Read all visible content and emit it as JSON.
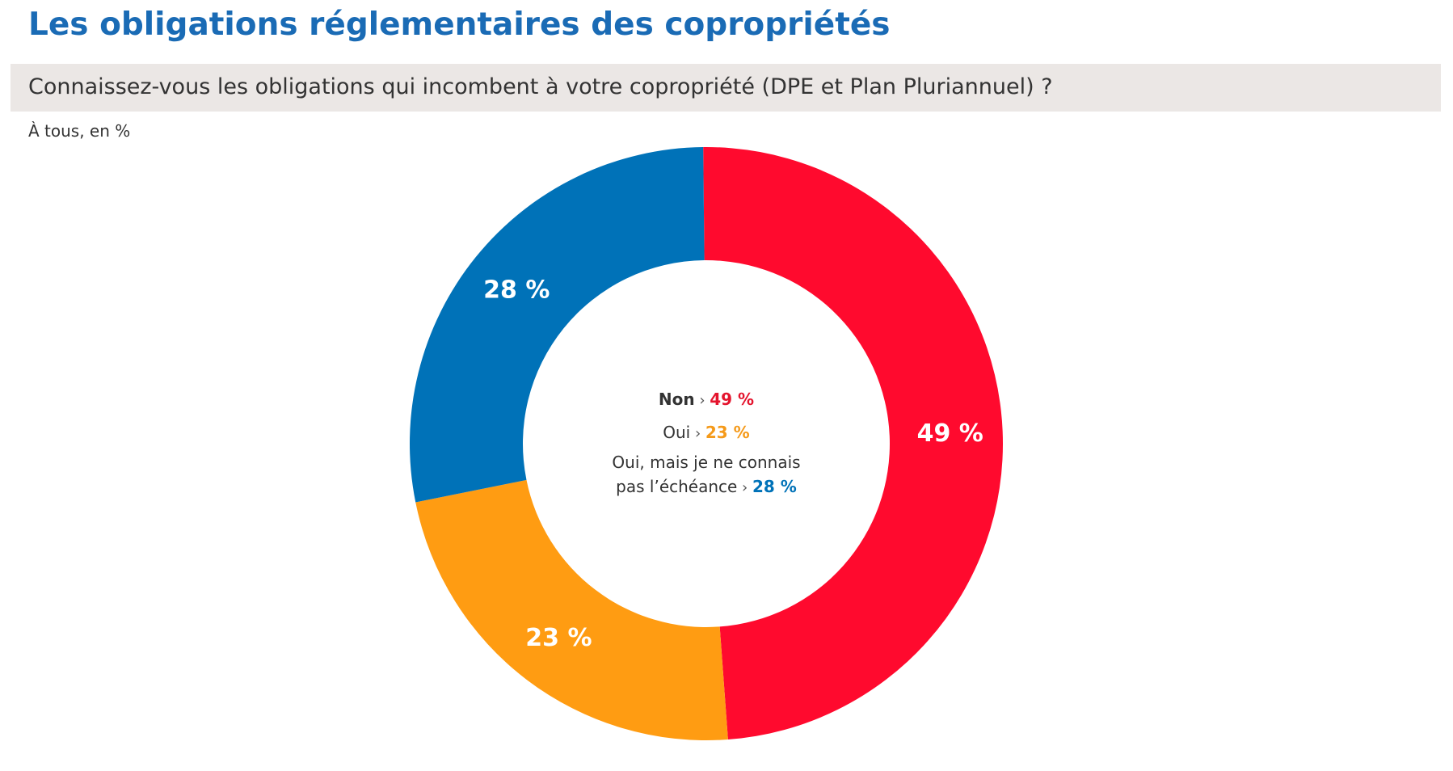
{
  "header": {
    "title": "Les obligations réglementaires des copropriétés",
    "question": "Connaissez-vous les obligations qui incombent à votre copropriété (DPE et Plan Pluriannuel) ?",
    "subtitle": "À tous, en %"
  },
  "chart_data": {
    "type": "pie",
    "variant": "donut",
    "start_angle_deg": -90.6,
    "slices": [
      {
        "label": "Non",
        "value": 49,
        "display": "49 %",
        "color": "#ff0a2e"
      },
      {
        "label": "Oui",
        "value": 23,
        "display": "23 %",
        "color": "#ff9c12"
      },
      {
        "label": "Oui, mais je ne connais pas l’échéance",
        "value": 28,
        "display": "28 %",
        "color": "#0072b8"
      }
    ],
    "legend": [
      {
        "line1": "",
        "line2": "Non",
        "bold_label": true,
        "sep": "›",
        "value": "49 %",
        "color": "#e4142d"
      },
      {
        "line1": "",
        "line2": "Oui",
        "bold_label": false,
        "sep": "›",
        "value": "23 %",
        "color": "#f59a1a"
      },
      {
        "line1": "Oui, mais je ne connais",
        "line2": "pas l’échéance",
        "bold_label": false,
        "sep": "›",
        "value": "28 %",
        "color": "#0072b8"
      }
    ]
  }
}
